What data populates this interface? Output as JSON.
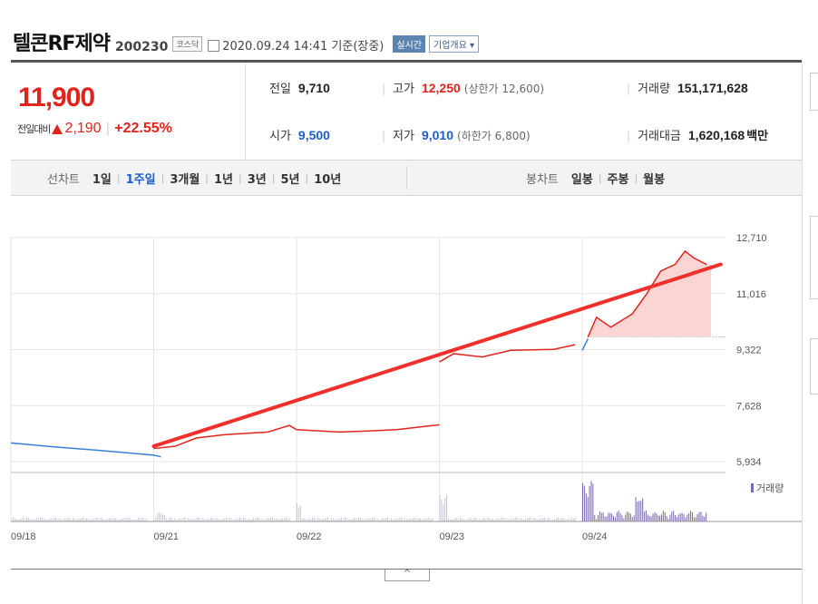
{
  "header": {
    "stock_name": "텔콘RF제약",
    "stock_code": "200230",
    "market": "코스닥",
    "datetime_text": "2020.09.24 14:41 기준(장중)",
    "realtime_button": "실시간",
    "company_button": "기업개요 ▾"
  },
  "price": {
    "current": "11,900",
    "change_label": "전일대비",
    "change_value": "2,190",
    "change_pct": "+22.55%"
  },
  "stats": {
    "prev_close_label": "전일",
    "prev_close": "9,710",
    "high_label": "고가",
    "high": "12,250",
    "upper_limit": "(상한가 12,600)",
    "volume_label": "거래량",
    "volume": "151,171,628",
    "open_label": "시가",
    "open": "9,500",
    "low_label": "저가",
    "low": "9,010",
    "lower_limit": "(하한가 6,800)",
    "trade_value_label": "거래대금",
    "trade_value": "1,620,168",
    "trade_value_unit": "백만"
  },
  "tabs": {
    "line_chart_label": "선차트",
    "line_periods": [
      "1일",
      "1주일",
      "3개월",
      "1년",
      "3년",
      "5년",
      "10년"
    ],
    "active_period": "1주일",
    "candle_chart_label": "봉차트",
    "candle_periods": [
      "일봉",
      "주봉",
      "월봉"
    ]
  },
  "colors": {
    "up": "#e0241b",
    "down": "#3a7fd5",
    "volume": "#7b68b0",
    "trend": "#f0302a",
    "fill": "#fbd4d4"
  },
  "chart_data": {
    "type": "line",
    "title": "",
    "xlabel": "",
    "ylabel": "",
    "y_ticks": [
      "12,710",
      "11,016",
      "9,322",
      "7,628",
      "5,934"
    ],
    "x_ticks": [
      "09/18",
      "09/21",
      "09/22",
      "09/23",
      "09/24"
    ],
    "ylim": [
      5934,
      12710
    ],
    "legend": [
      "거래량"
    ],
    "grid": true,
    "prev_close": 9710,
    "series": [
      {
        "name": "",
        "color_key": "down",
        "points": [
          [
            0,
            6500
          ],
          [
            0.3,
            6380
          ],
          [
            0.6,
            6280
          ],
          [
            1.0,
            6130
          ],
          [
            1.05,
            6080
          ]
        ]
      },
      {
        "name": "",
        "color_key": "up",
        "points": [
          [
            1.0,
            6330
          ],
          [
            1.15,
            6400
          ],
          [
            1.3,
            6650
          ],
          [
            1.5,
            6750
          ],
          [
            1.8,
            6830
          ],
          [
            1.95,
            7030
          ],
          [
            2.0,
            6900
          ],
          [
            2.3,
            6830
          ],
          [
            2.5,
            6860
          ],
          [
            2.7,
            6900
          ],
          [
            3.0,
            7050
          ]
        ]
      },
      {
        "name": "",
        "color_key": "up",
        "points": [
          [
            3.0,
            8950
          ],
          [
            3.1,
            9200
          ],
          [
            3.3,
            9100
          ],
          [
            3.5,
            9300
          ],
          [
            3.8,
            9330
          ],
          [
            3.95,
            9470
          ]
        ]
      },
      {
        "name": "",
        "color_key": "down",
        "points": [
          [
            4.0,
            9300
          ],
          [
            4.04,
            9650
          ]
        ]
      },
      {
        "name": "",
        "color_key": "up",
        "points": [
          [
            4.04,
            9700
          ],
          [
            4.1,
            10300
          ],
          [
            4.2,
            10000
          ],
          [
            4.35,
            10400
          ],
          [
            4.45,
            11000
          ],
          [
            4.55,
            11700
          ],
          [
            4.65,
            11900
          ],
          [
            4.72,
            12300
          ],
          [
            4.78,
            12100
          ],
          [
            4.87,
            11900
          ]
        ]
      }
    ],
    "trend_line": [
      [
        1.0,
        6400
      ],
      [
        4.97,
        11900
      ]
    ],
    "volume_spikes": [
      [
        1.05,
        0.2
      ],
      [
        2.0,
        0.45
      ],
      [
        3.02,
        0.6
      ],
      [
        4.0,
        0.7
      ],
      [
        4.05,
        0.75
      ],
      [
        4.4,
        0.45
      ]
    ]
  }
}
